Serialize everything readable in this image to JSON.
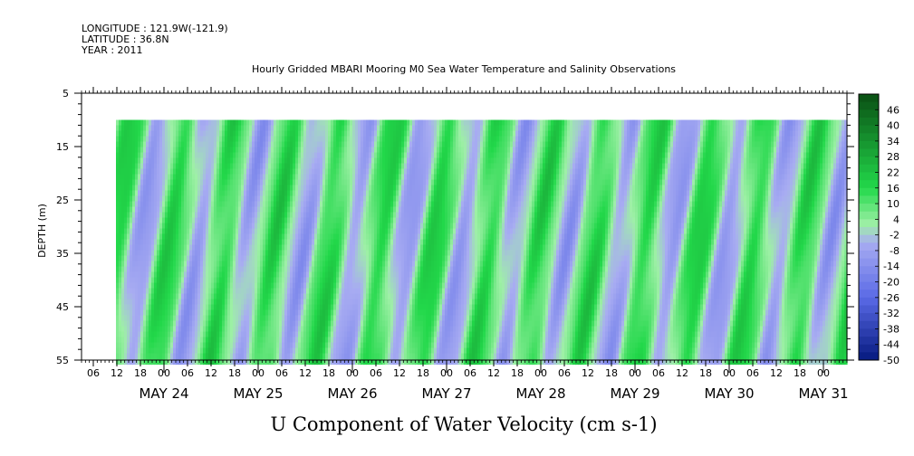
{
  "header": {
    "longitude": "LONGITUDE : 121.9W(-121.9)",
    "latitude": "LATITUDE : 36.8N",
    "year": "YEAR : 2011"
  },
  "chart_data": {
    "type": "heatmap",
    "title": "Hourly Gridded MBARI Mooring M0 Sea Water Temperature and Salinity Observations",
    "xlabel": "U Component of Water Velocity (cm s-1)",
    "ylabel": "DEPTH (m)",
    "ylim": [
      5,
      55
    ],
    "y_inverted": true,
    "y_ticks": [
      "5",
      "15",
      "25",
      "35",
      "45",
      "55"
    ],
    "x_hour_ticks": [
      "06",
      "12",
      "18",
      "00",
      "06",
      "12",
      "18",
      "00",
      "06",
      "12",
      "18",
      "00",
      "06",
      "12",
      "18",
      "00",
      "06",
      "12",
      "18",
      "00",
      "06",
      "12",
      "18",
      "00",
      "06",
      "12",
      "18",
      "00",
      "06",
      "12",
      "18",
      "00"
    ],
    "x_date_labels": [
      "MAY 24",
      "MAY 25",
      "MAY 26",
      "MAY 27",
      "MAY 28",
      "MAY 29",
      "MAY 30",
      "MAY 31"
    ],
    "data_depth_range_m": [
      10,
      55
    ],
    "colorbar": {
      "levels": [
        "46",
        "40",
        "34",
        "28",
        "22",
        "16",
        "10",
        "4",
        "-2",
        "-8",
        "-14",
        "-20",
        "-26",
        "-32",
        "-38",
        "-44",
        "-50"
      ],
      "range": [
        -50,
        52
      ],
      "colors": {
        "strong_positive": "#0a4f14",
        "positive": "#22d84a",
        "weak_positive": "#9ef0a6",
        "weak_negative": "#a8acf2",
        "negative": "#5a6ae6",
        "strong_negative": "#061a80"
      }
    },
    "dominant_pattern": "alternating diagonal bands of positive (green, about +10 to +22) and negative (blue, about -2 to -14) velocity, roughly twice daily, tilting with depth"
  }
}
